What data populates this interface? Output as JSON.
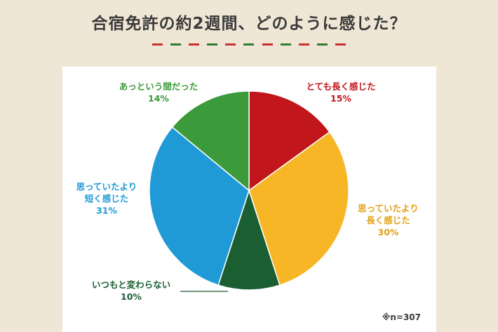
{
  "title": "合宿免許の約2週間、どのように感じた？",
  "colors": {
    "background": "#efe6d6",
    "card": "#ffffff",
    "dash_red": "#c9302c",
    "dash_green": "#2e7d32"
  },
  "chart_data": {
    "type": "pie",
    "title": "合宿免許の約2週間、どのように感じた？",
    "start": "12 o'clock, clockwise",
    "note": "※n=307",
    "slices": [
      {
        "label_lines": [
          "とても長く感じた"
        ],
        "value": 15,
        "value_label": "15%",
        "color": "#c0161c",
        "text_color": "#c0161c"
      },
      {
        "label_lines": [
          "思っていたより",
          "長く感じた"
        ],
        "value": 30,
        "value_label": "30%",
        "color": "#f6b626",
        "text_color": "#e0a116"
      },
      {
        "label_lines": [
          "いつもと変わらない"
        ],
        "value": 10,
        "value_label": "10%",
        "color": "#1a5e32",
        "text_color": "#1a5e32"
      },
      {
        "label_lines": [
          "思っていたより",
          "短く感じた"
        ],
        "value": 31,
        "value_label": "31%",
        "color": "#1f9ad6",
        "text_color": "#1f9ad6"
      },
      {
        "label_lines": [
          "あっという間だった"
        ],
        "value": 14,
        "value_label": "14%",
        "color": "#3b9a3a",
        "text_color": "#3b9a3a"
      }
    ]
  }
}
